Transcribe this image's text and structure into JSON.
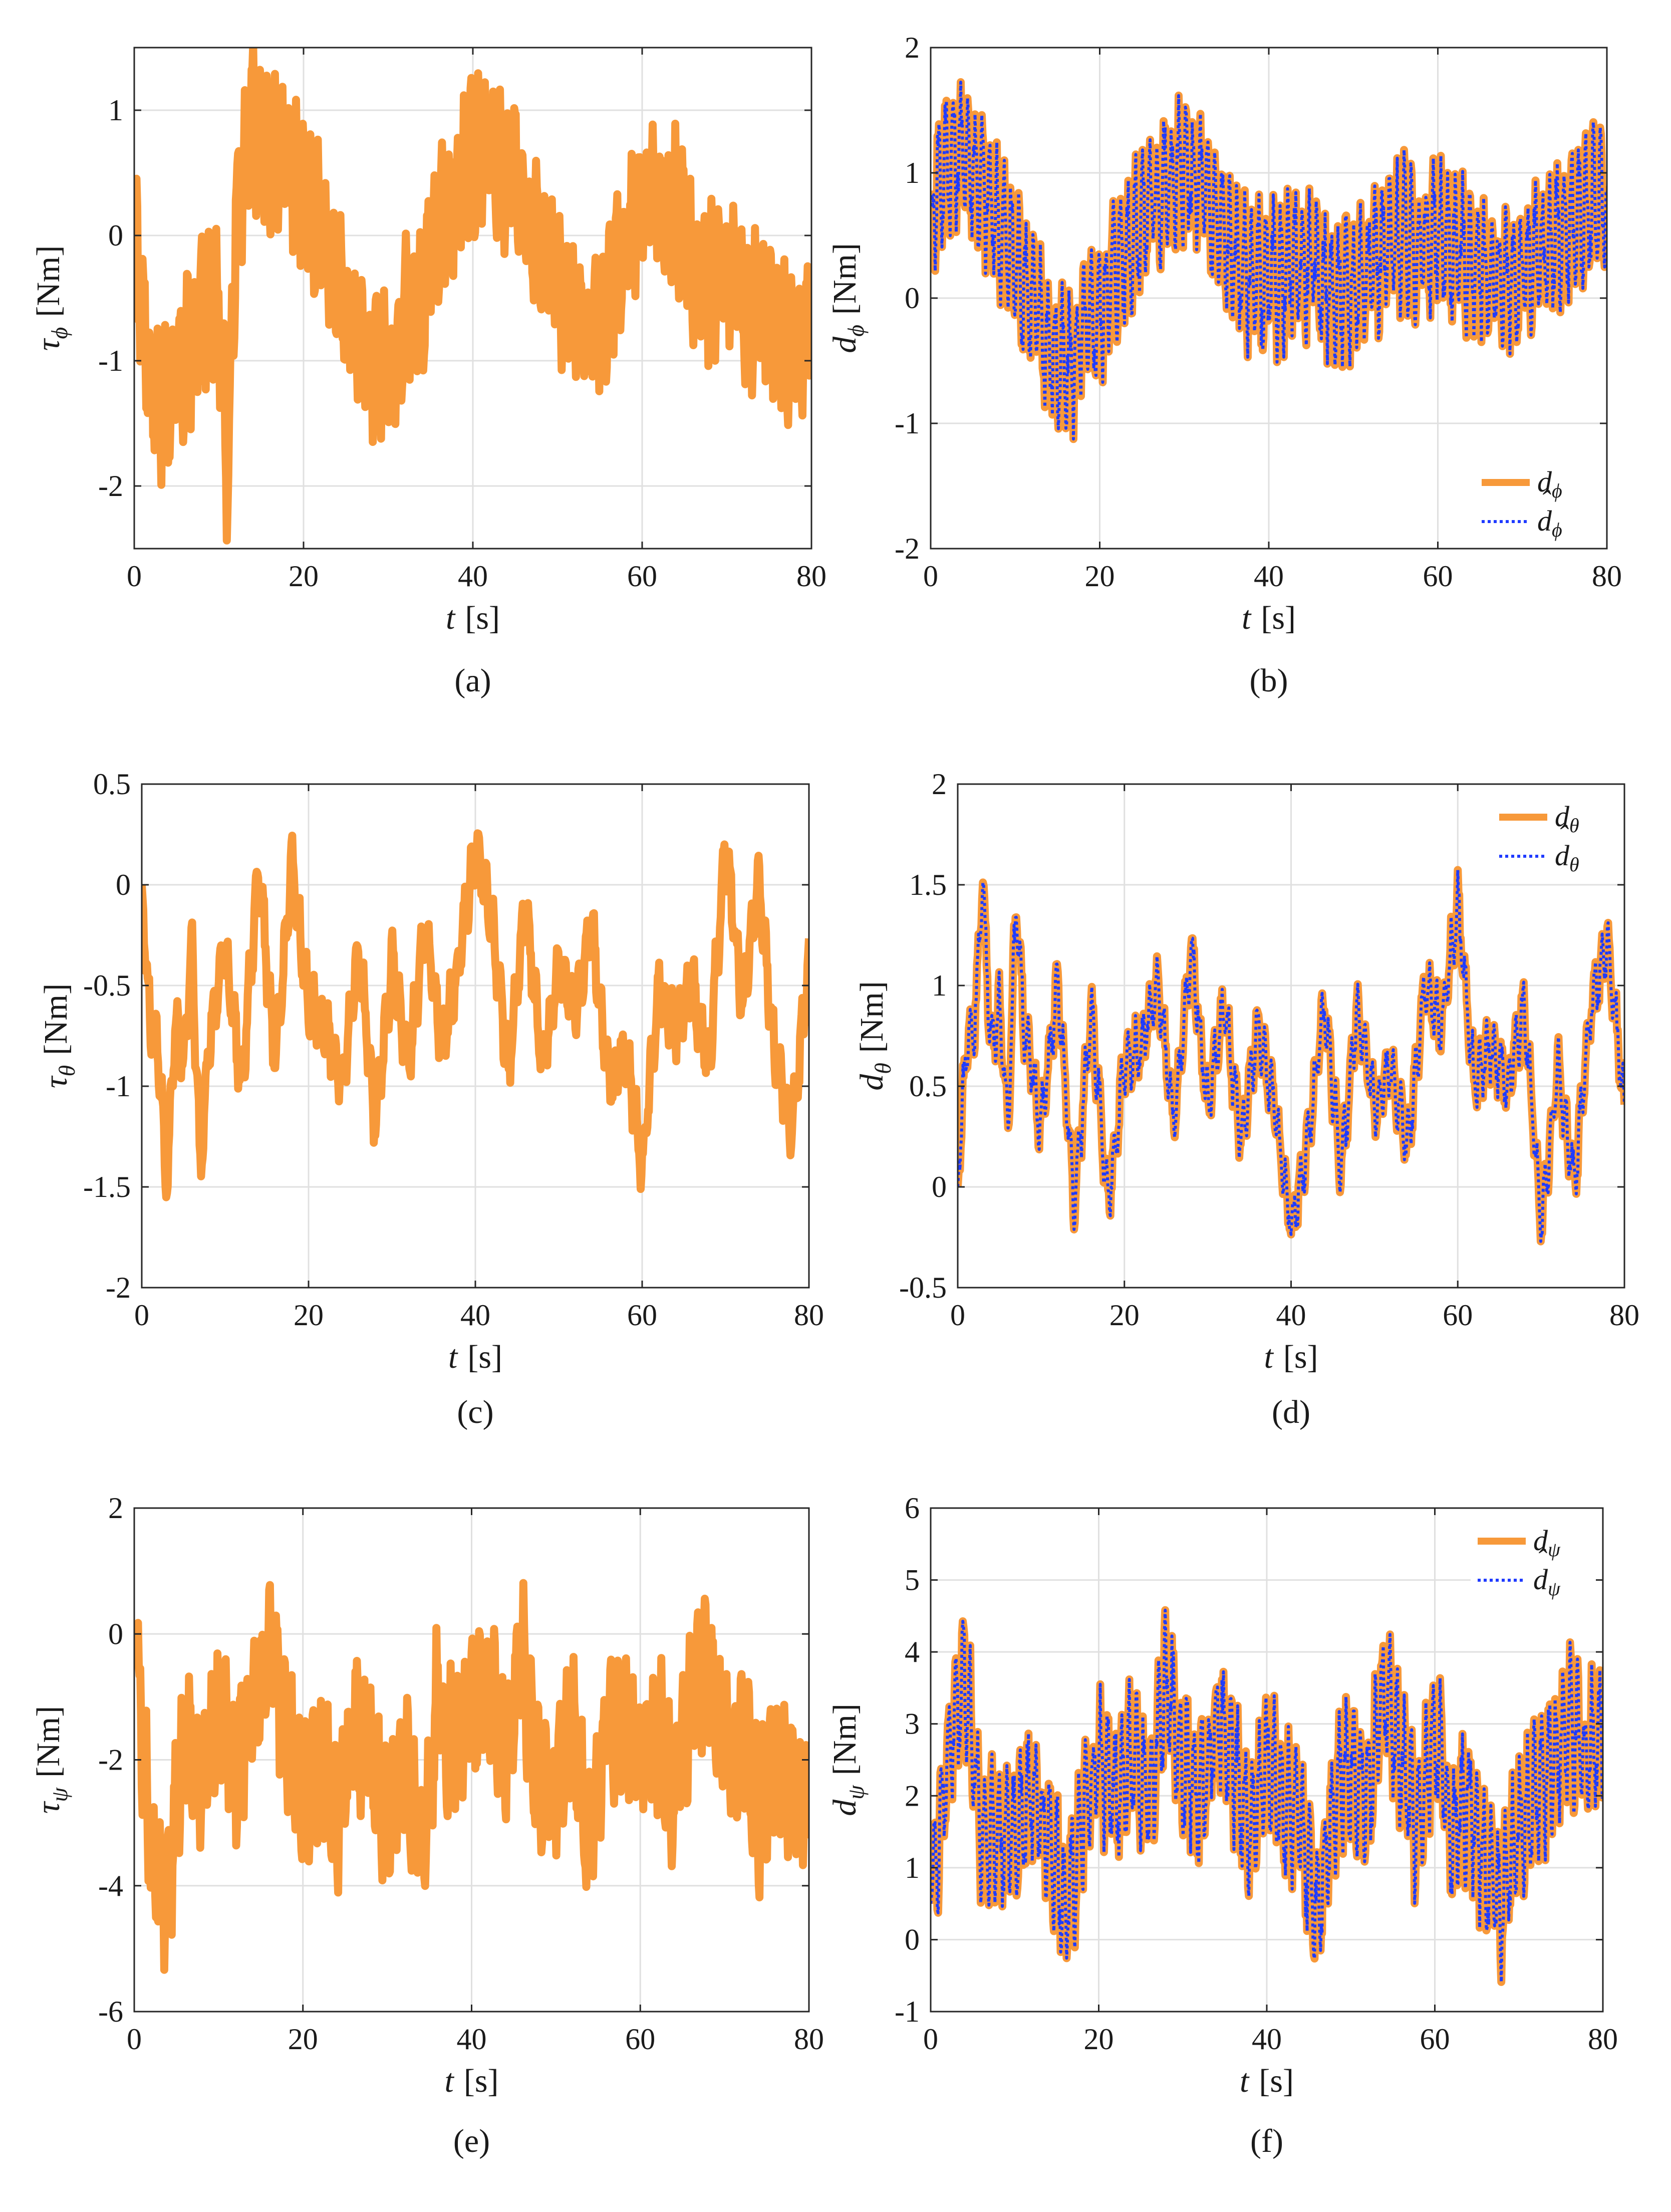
{
  "figure": {
    "colors": {
      "measured": "#F7993A",
      "estimated": "#1F3BFF",
      "grid": "#E0E0E0",
      "axis": "#262626"
    }
  },
  "chart_data": [
    {
      "type": "line",
      "panel": "a",
      "caption": "(a)",
      "ylabel_sym": "τ",
      "ylabel_sub": "ϕ",
      "ylabel_unit": "[Nm]",
      "xlabel_sym": "t",
      "xlabel_unit": "[s]",
      "xlim": [
        0,
        80
      ],
      "ylim": [
        -2.5,
        1.5
      ],
      "xticks": [
        0,
        20,
        40,
        60,
        80
      ],
      "yticks": [
        -2,
        -1,
        0,
        1
      ],
      "xtick_labels": [
        "0",
        "20",
        "40",
        "60",
        "80"
      ],
      "ytick_labels": [
        "-2",
        "-1",
        "0",
        "1"
      ],
      "grid": true,
      "series": [
        {
          "name": "τϕ",
          "style": "solid",
          "x": [
            0,
            2,
            4,
            6,
            8,
            10,
            11,
            12,
            14,
            16,
            18,
            20,
            22,
            24,
            26,
            28,
            30,
            32,
            34,
            36,
            38,
            40,
            42,
            44,
            46,
            48,
            50,
            52,
            54,
            56,
            58,
            60,
            62,
            64,
            66,
            68,
            70,
            72,
            74,
            76,
            78,
            80
          ],
          "y": [
            0,
            -1.2,
            -1.4,
            -1.0,
            -0.6,
            -0.5,
            -2.0,
            0.2,
            0.9,
            0.6,
            0.7,
            0.3,
            0.1,
            -0.4,
            -0.7,
            -1.0,
            -1.1,
            -0.6,
            -0.5,
            0.1,
            0.3,
            0.6,
            0.7,
            0.4,
            0.4,
            -0.1,
            -0.4,
            -0.6,
            -0.7,
            -0.5,
            -0.1,
            0.3,
            0.3,
            0.2,
            -0.2,
            -0.4,
            -0.2,
            -0.6,
            -0.6,
            -0.8,
            -0.9,
            -0.6
          ]
        }
      ]
    },
    {
      "type": "line",
      "panel": "b",
      "caption": "(b)",
      "ylabel_sym": "d",
      "ylabel_sub": "ϕ",
      "ylabel_unit": "[Nm]",
      "xlabel_sym": "t",
      "xlabel_unit": "[s]",
      "xlim": [
        0,
        80
      ],
      "ylim": [
        -2,
        2
      ],
      "xticks": [
        0,
        20,
        40,
        60,
        80
      ],
      "yticks": [
        -2,
        -1,
        0,
        1,
        2
      ],
      "xtick_labels": [
        "0",
        "20",
        "40",
        "60",
        "80"
      ],
      "ytick_labels": [
        "-2",
        "-1",
        "0",
        "1",
        "2"
      ],
      "grid": true,
      "legend_position": "bottom-right",
      "legend": [
        {
          "label": "d",
          "sub": "ϕ",
          "hat": false
        },
        {
          "label": "d",
          "sub": "ϕ",
          "hat": true
        }
      ],
      "series": [
        {
          "name": "dϕ",
          "style": "solid",
          "x": [
            0,
            2,
            4,
            6,
            8,
            10,
            12,
            14,
            16,
            18,
            20,
            22,
            24,
            26,
            28,
            30,
            32,
            34,
            36,
            38,
            40,
            42,
            44,
            46,
            48,
            50,
            52,
            54,
            56,
            58,
            60,
            62,
            64,
            66,
            68,
            70,
            72,
            74,
            76,
            78,
            80
          ],
          "y": [
            0.8,
            1.1,
            1.2,
            0.9,
            0.6,
            0.3,
            0.0,
            -0.4,
            -0.6,
            -0.3,
            -0.1,
            0.3,
            0.5,
            0.8,
            0.9,
            1.0,
            0.9,
            0.6,
            0.3,
            0.2,
            0.1,
            0.2,
            0.3,
            0.2,
            0.0,
            0.1,
            0.3,
            0.4,
            0.5,
            0.4,
            0.5,
            0.4,
            0.3,
            0.2,
            0.1,
            0.2,
            0.3,
            0.5,
            0.6,
            0.7,
            0.8
          ]
        },
        {
          "name": "d̂ϕ",
          "style": "dotted",
          "x": [
            0,
            2,
            4,
            6,
            8,
            10,
            12,
            14,
            16,
            18,
            20,
            22,
            24,
            26,
            28,
            30,
            32,
            34,
            36,
            38,
            40,
            42,
            44,
            46,
            48,
            50,
            52,
            54,
            56,
            58,
            60,
            62,
            64,
            66,
            68,
            70,
            72,
            74,
            76,
            78,
            80
          ],
          "y": [
            0.8,
            1.1,
            1.2,
            0.9,
            0.6,
            0.3,
            0.0,
            -0.4,
            -0.6,
            -0.3,
            -0.1,
            0.3,
            0.5,
            0.8,
            0.9,
            1.0,
            0.9,
            0.6,
            0.3,
            0.2,
            0.1,
            0.2,
            0.3,
            0.2,
            0.0,
            0.1,
            0.3,
            0.4,
            0.5,
            0.4,
            0.5,
            0.4,
            0.3,
            0.2,
            0.1,
            0.2,
            0.3,
            0.5,
            0.6,
            0.7,
            0.8
          ]
        }
      ]
    },
    {
      "type": "line",
      "panel": "c",
      "caption": "(c)",
      "ylabel_sym": "τ",
      "ylabel_sub": "θ",
      "ylabel_unit": "[Nm]",
      "xlabel_sym": "t",
      "xlabel_unit": "[s]",
      "xlim": [
        0,
        80
      ],
      "ylim": [
        -2,
        0.5
      ],
      "xticks": [
        0,
        20,
        40,
        60,
        80
      ],
      "yticks": [
        -2,
        -1.5,
        -1,
        -0.5,
        0,
        0.5
      ],
      "xtick_labels": [
        "0",
        "20",
        "40",
        "60",
        "80"
      ],
      "ytick_labels": [
        "-2",
        "-1.5",
        "-1",
        "-0.5",
        "0",
        "0.5"
      ],
      "grid": true,
      "series": [
        {
          "name": "τθ",
          "style": "solid",
          "x": [
            0,
            1,
            2,
            3,
            4,
            5,
            6,
            7,
            8,
            10,
            12,
            14,
            16,
            18,
            20,
            22,
            24,
            26,
            28,
            30,
            32,
            34,
            36,
            38,
            40,
            42,
            44,
            46,
            48,
            50,
            52,
            54,
            56,
            58,
            60,
            62,
            64,
            66,
            68,
            70,
            72,
            74,
            76,
            78,
            80
          ],
          "y": [
            0,
            -0.7,
            -0.8,
            -1.5,
            -0.7,
            -0.9,
            -0.3,
            -1.4,
            -0.8,
            -0.3,
            -1.0,
            0.1,
            -0.9,
            0.1,
            -0.6,
            -0.7,
            -1.0,
            -0.3,
            -1.2,
            -0.4,
            -0.9,
            -0.2,
            -0.8,
            -0.4,
            0.2,
            -0.2,
            -0.9,
            -0.1,
            -0.9,
            -0.4,
            -0.6,
            -0.2,
            -1.0,
            -0.8,
            -1.4,
            -0.5,
            -0.7,
            -0.5,
            -0.9,
            0.2,
            -0.6,
            0.0,
            -0.9,
            -1.2,
            -0.4
          ]
        }
      ]
    },
    {
      "type": "line",
      "panel": "d",
      "caption": "(d)",
      "ylabel_sym": "d",
      "ylabel_sub": "θ",
      "ylabel_unit": "[Nm]",
      "xlabel_sym": "t",
      "xlabel_unit": "[s]",
      "xlim": [
        0,
        80
      ],
      "ylim": [
        -0.5,
        2
      ],
      "xticks": [
        0,
        20,
        40,
        60,
        80
      ],
      "yticks": [
        -0.5,
        0,
        0.5,
        1,
        1.5,
        2
      ],
      "xtick_labels": [
        "0",
        "20",
        "40",
        "60",
        "80"
      ],
      "ytick_labels": [
        "-0.5",
        "0",
        "0.5",
        "1",
        "1.5",
        "2"
      ],
      "grid": true,
      "legend_position": "top-right",
      "legend": [
        {
          "label": "d",
          "sub": "θ",
          "hat": false
        },
        {
          "label": "d",
          "sub": "θ",
          "hat": true
        }
      ],
      "series": [
        {
          "name": "dθ",
          "style": "solid",
          "x": [
            0,
            1,
            2,
            3,
            4,
            5,
            6,
            7,
            8,
            10,
            12,
            14,
            16,
            18,
            20,
            22,
            24,
            26,
            28,
            30,
            32,
            34,
            36,
            38,
            40,
            42,
            44,
            46,
            48,
            50,
            52,
            54,
            56,
            58,
            60,
            62,
            64,
            66,
            68,
            70,
            72,
            74,
            76,
            78,
            80
          ],
          "y": [
            0,
            0.7,
            0.8,
            1.5,
            0.7,
            0.9,
            0.3,
            1.4,
            0.8,
            0.3,
            1.0,
            -0.1,
            0.9,
            -0.1,
            0.6,
            0.7,
            1.0,
            0.3,
            1.2,
            0.4,
            0.9,
            0.2,
            0.8,
            0.4,
            -0.2,
            0.2,
            0.9,
            0.1,
            0.9,
            0.4,
            0.6,
            0.2,
            1.0,
            0.8,
            1.4,
            0.5,
            0.7,
            0.5,
            0.9,
            -0.2,
            0.6,
            0.0,
            0.9,
            1.2,
            0.4
          ]
        },
        {
          "name": "d̂θ",
          "style": "dotted",
          "x": [
            0,
            1,
            2,
            3,
            4,
            5,
            6,
            7,
            8,
            10,
            12,
            14,
            16,
            18,
            20,
            22,
            24,
            26,
            28,
            30,
            32,
            34,
            36,
            38,
            40,
            42,
            44,
            46,
            48,
            50,
            52,
            54,
            56,
            58,
            60,
            62,
            64,
            66,
            68,
            70,
            72,
            74,
            76,
            78,
            80
          ],
          "y": [
            0,
            0.7,
            0.8,
            1.5,
            0.7,
            0.9,
            0.3,
            1.4,
            0.8,
            0.3,
            1.0,
            -0.1,
            0.9,
            -0.1,
            0.6,
            0.7,
            1.0,
            0.3,
            1.2,
            0.4,
            0.9,
            0.2,
            0.8,
            0.4,
            -0.2,
            0.2,
            0.9,
            0.1,
            0.9,
            0.4,
            0.6,
            0.2,
            1.0,
            0.8,
            1.4,
            0.5,
            0.7,
            0.5,
            0.9,
            -0.2,
            0.6,
            0.0,
            0.9,
            1.2,
            0.4
          ]
        }
      ]
    },
    {
      "type": "line",
      "panel": "e",
      "caption": "(e)",
      "ylabel_sym": "τ",
      "ylabel_sub": "ψ",
      "ylabel_unit": "[Nm]",
      "xlabel_sym": "t",
      "xlabel_unit": "[s]",
      "xlim": [
        0,
        80
      ],
      "ylim": [
        -6,
        2
      ],
      "xticks": [
        0,
        20,
        40,
        60,
        80
      ],
      "yticks": [
        -6,
        -4,
        -2,
        0,
        2
      ],
      "xtick_labels": [
        "0",
        "20",
        "40",
        "60",
        "80"
      ],
      "ytick_labels": [
        "-6",
        "-4",
        "-2",
        "0",
        "2"
      ],
      "grid": true,
      "series": [
        {
          "name": "τψ",
          "style": "solid",
          "x": [
            0,
            2,
            4,
            6,
            8,
            10,
            12,
            14,
            16,
            18,
            20,
            22,
            24,
            26,
            28,
            30,
            32,
            34,
            36,
            38,
            40,
            42,
            44,
            46,
            48,
            50,
            52,
            54,
            56,
            58,
            60,
            62,
            64,
            66,
            68,
            70,
            72,
            74,
            76,
            78,
            80
          ],
          "y": [
            0,
            -3.5,
            -4.2,
            -1.5,
            -2.5,
            -1.2,
            -2.2,
            -1.0,
            -0.4,
            -1.5,
            -2.5,
            -2.0,
            -3.0,
            -1.5,
            -2.0,
            -3.2,
            -2.0,
            -3.5,
            -1.0,
            -2.0,
            -1.2,
            -0.8,
            -2.0,
            -0.3,
            -2.5,
            -2.5,
            -1.5,
            -3.5,
            -1.5,
            -1.2,
            -2.0,
            -1.5,
            -2.5,
            -1.2,
            -0.5,
            -2.0,
            -1.5,
            -3.0,
            -1.8,
            -2.5,
            -3.0
          ]
        }
      ]
    },
    {
      "type": "line",
      "panel": "f",
      "caption": "(f)",
      "ylabel_sym": "d",
      "ylabel_sub": "ψ",
      "ylabel_unit": "[Nm]",
      "xlabel_sym": "t",
      "xlabel_unit": "[s]",
      "xlim": [
        0,
        80
      ],
      "ylim": [
        -1,
        6
      ],
      "xticks": [
        0,
        20,
        40,
        60,
        80
      ],
      "yticks": [
        -1,
        0,
        1,
        2,
        3,
        4,
        5,
        6
      ],
      "xtick_labels": [
        "0",
        "20",
        "40",
        "60",
        "80"
      ],
      "ytick_labels": [
        "-1",
        "0",
        "1",
        "2",
        "3",
        "4",
        "5",
        "6"
      ],
      "grid": true,
      "legend_position": "top-right",
      "legend": [
        {
          "label": "d",
          "sub": "ψ",
          "hat": false
        },
        {
          "label": "d",
          "sub": "ψ",
          "hat": true
        }
      ],
      "series": [
        {
          "name": "dψ",
          "style": "solid",
          "x": [
            0,
            2,
            4,
            6,
            8,
            10,
            12,
            14,
            16,
            18,
            20,
            22,
            24,
            26,
            28,
            30,
            32,
            34,
            36,
            38,
            40,
            42,
            44,
            46,
            48,
            50,
            52,
            54,
            56,
            58,
            60,
            62,
            64,
            66,
            68,
            70,
            72,
            74,
            76,
            78,
            80
          ],
          "y": [
            0.5,
            2.5,
            3.8,
            1.5,
            1.5,
            1.5,
            2.0,
            1.5,
            0.5,
            1.5,
            2.5,
            2.0,
            2.5,
            2.0,
            3.5,
            2.5,
            2.0,
            3.0,
            2.5,
            1.5,
            2.5,
            2.0,
            1.5,
            0.5,
            2.0,
            2.5,
            2.0,
            3.5,
            2.5,
            1.5,
            3.0,
            1.5,
            2.0,
            1.0,
            0.5,
            1.5,
            2.0,
            2.5,
            3.0,
            2.5,
            3.0
          ]
        },
        {
          "name": "d̂ψ",
          "style": "dotted",
          "x": [
            0,
            2,
            4,
            6,
            8,
            10,
            12,
            14,
            16,
            18,
            20,
            22,
            24,
            26,
            28,
            30,
            32,
            34,
            36,
            38,
            40,
            42,
            44,
            46,
            48,
            50,
            52,
            54,
            56,
            58,
            60,
            62,
            64,
            66,
            68,
            70,
            72,
            74,
            76,
            78,
            80
          ],
          "y": [
            0.5,
            2.5,
            3.8,
            1.5,
            1.5,
            1.5,
            2.0,
            1.5,
            0.5,
            1.5,
            2.5,
            2.0,
            2.5,
            2.0,
            3.5,
            2.5,
            2.0,
            3.0,
            2.5,
            1.5,
            2.5,
            2.0,
            1.5,
            0.5,
            2.0,
            2.5,
            2.0,
            3.5,
            2.5,
            1.5,
            3.0,
            1.5,
            2.0,
            1.0,
            0.5,
            1.5,
            2.0,
            2.5,
            3.0,
            2.5,
            3.0
          ]
        }
      ]
    }
  ]
}
